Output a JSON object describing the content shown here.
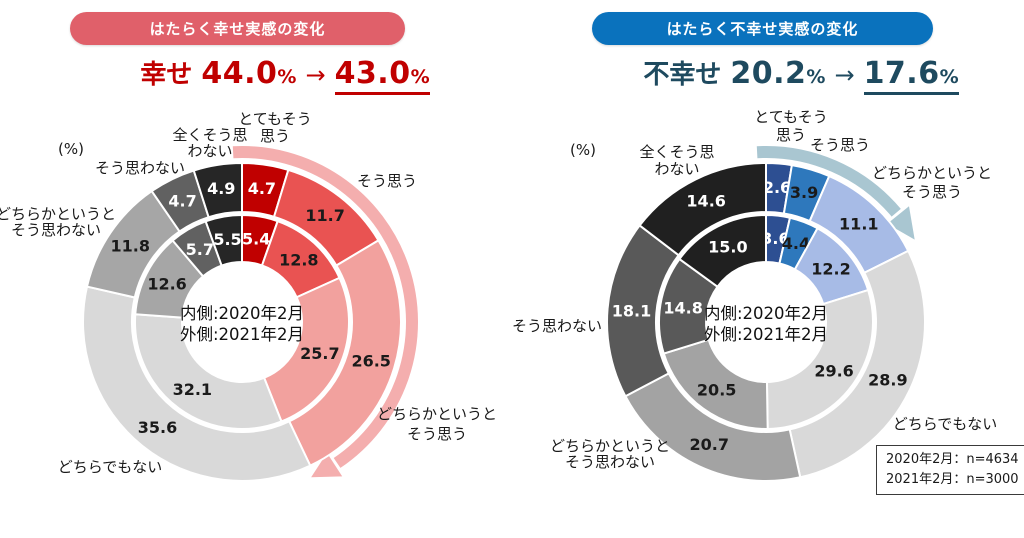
{
  "charts": [
    {
      "id": "happiness",
      "badge": {
        "label": "はたらく幸せ実感の変化",
        "bg": "#e0606a"
      },
      "headline": {
        "label": "幸せ",
        "from": "44.0",
        "to": "43.0",
        "unit": "%",
        "arrow": "→",
        "color": "#c00000"
      },
      "unit_label": "(%)",
      "center_lines": [
        "内側:2020年2月",
        "外側:2021年2月"
      ],
      "chart_data": {
        "type": "donut-nested",
        "title": "はたらく幸せ実感の変化",
        "rings": [
          {
            "position": "inner",
            "name": "2020年2月"
          },
          {
            "position": "outer",
            "name": "2021年2月"
          }
        ],
        "categories": [
          {
            "label_lines": [
              "とてもそう",
              "思う"
            ],
            "color": "#c00000",
            "value_text_color": "#ffffff",
            "inner": 5.4,
            "outer": 4.7
          },
          {
            "label_lines": [
              "そう思う"
            ],
            "color": "#e95352",
            "value_text_color": "#1a1a1a",
            "inner": 12.8,
            "outer": 11.7
          },
          {
            "label_lines": [
              "どちらかというと",
              "そう思う"
            ],
            "color": "#f2a19e",
            "value_text_color": "#1a1a1a",
            "inner": 25.7,
            "outer": 26.5
          },
          {
            "label_lines": [
              "どちらでもない"
            ],
            "color": "#d9d9d9",
            "value_text_color": "#1a1a1a",
            "inner": 32.1,
            "outer": 35.6
          },
          {
            "label_lines": [
              "どちらかというと",
              "そう思わない"
            ],
            "color": "#a6a6a6",
            "value_text_color": "#1a1a1a",
            "inner": 12.6,
            "outer": 11.8
          },
          {
            "label_lines": [
              "そう思わない"
            ],
            "color": "#616161",
            "value_text_color": "#ffffff",
            "inner": 5.7,
            "outer": 4.7
          },
          {
            "label_lines": [
              "全くそう思",
              "わない"
            ],
            "color": "#262626",
            "value_text_color": "#ffffff",
            "inner": 5.5,
            "outer": 4.9
          }
        ],
        "trend_arrow": {
          "color": "#f4aeae"
        }
      }
    },
    {
      "id": "unhappiness",
      "badge": {
        "label": "はたらく不幸せ実感の変化",
        "bg": "#0a72bd"
      },
      "headline": {
        "label": "不幸せ",
        "from": "20.2",
        "to": "17.6",
        "unit": "%",
        "arrow": "→",
        "color": "#1e4a5f"
      },
      "unit_label": "(%)",
      "center_lines": [
        "内側:2020年2月",
        "外側:2021年2月"
      ],
      "note_box": {
        "lines": [
          "2020年2月：n=4634",
          "2021年2月：n=3000"
        ]
      },
      "chart_data": {
        "type": "donut-nested",
        "title": "はたらく不幸せ実感の変化",
        "rings": [
          {
            "position": "inner",
            "name": "2020年2月"
          },
          {
            "position": "outer",
            "name": "2021年2月"
          }
        ],
        "categories": [
          {
            "label_lines": [
              "とてもそう",
              "思う"
            ],
            "color": "#2d4f92",
            "value_text_color": "#ffffff",
            "inner": 3.6,
            "outer": 2.6
          },
          {
            "label_lines": [
              "そう思う"
            ],
            "color": "#2e78bc",
            "value_text_color": "#1a1a1a",
            "inner": 4.4,
            "outer": 3.9
          },
          {
            "label_lines": [
              "どちらかというと",
              "そう思う"
            ],
            "color": "#a7bbe6",
            "value_text_color": "#1a1a1a",
            "inner": 12.2,
            "outer": 11.1
          },
          {
            "label_lines": [
              "どちらでもない"
            ],
            "color": "#d9d9d9",
            "value_text_color": "#1a1a1a",
            "inner": 29.6,
            "outer": 28.9
          },
          {
            "label_lines": [
              "どちらかというと",
              "そう思わない"
            ],
            "color": "#a3a3a3",
            "value_text_color": "#1a1a1a",
            "inner": 20.5,
            "outer": 20.7
          },
          {
            "label_lines": [
              "そう思わない"
            ],
            "color": "#595959",
            "value_text_color": "#ffffff",
            "inner": 14.8,
            "outer": 18.1
          },
          {
            "label_lines": [
              "全くそう思",
              "わない"
            ],
            "color": "#202020",
            "value_text_color": "#ffffff",
            "inner": 15.0,
            "outer": 14.6
          }
        ],
        "trend_arrow": {
          "color": "#a9c6d1"
        }
      }
    }
  ]
}
